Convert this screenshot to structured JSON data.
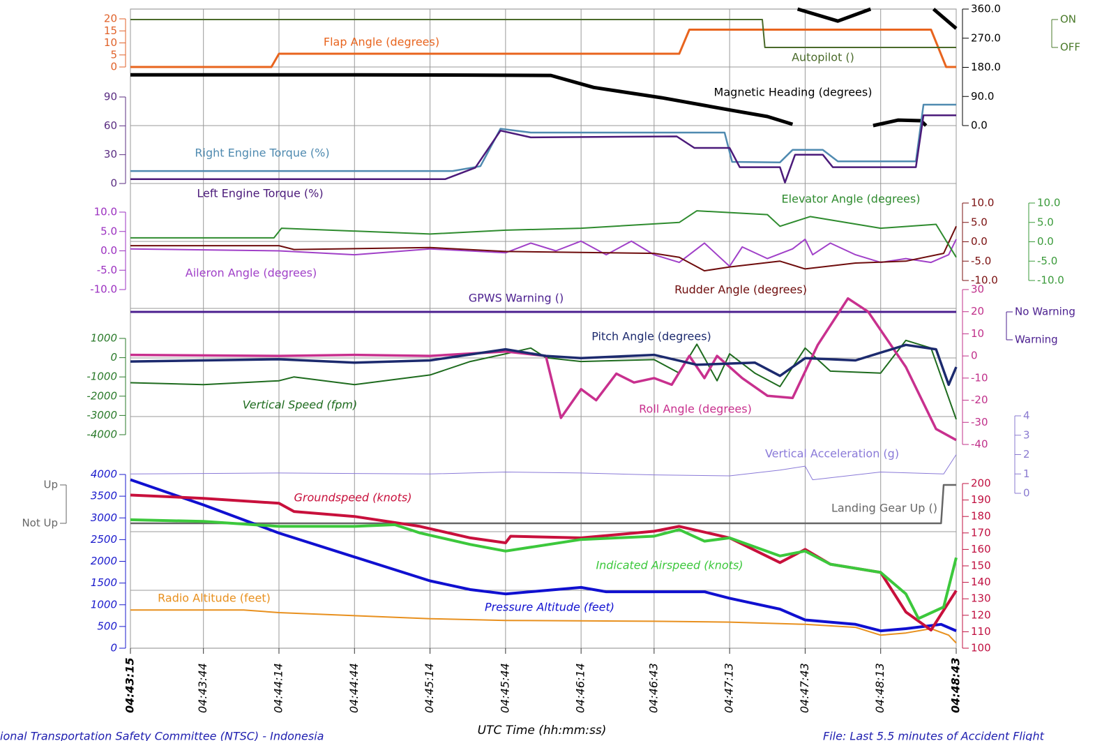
{
  "x_axis": {
    "label": "UTC Time (hh:mm:ss)",
    "xlim": [
      "04:43:15",
      "04:48:43"
    ],
    "xticks": [
      "04:43:15",
      "04:43:44",
      "04:44:14",
      "04:44:44",
      "04:45:14",
      "04:45:44",
      "04:46:14",
      "04:46:43",
      "04:47:13",
      "04:47:43",
      "04:48:13",
      "04:48:43"
    ],
    "grid": true
  },
  "footer": {
    "left": "ional Transportation Safety Committee (NTSC) - Indonesia",
    "right": "File: Last 5.5 minutes of Accident Flight"
  },
  "chart_data": [
    {
      "type": "line",
      "color": "#e0622a",
      "ylim": [
        0,
        20
      ],
      "yticks": [
        0,
        5,
        10,
        15,
        20
      ],
      "series": [
        {
          "name": "Flap Angle (degrees)",
          "color": "#e8641e",
          "x": [
            "04:43:15",
            "04:44:11",
            "04:44:14",
            "04:46:53",
            "04:46:57",
            "04:48:33",
            "04:48:39",
            "04:48:43"
          ],
          "values": [
            0,
            0,
            5.5,
            5.5,
            15.5,
            15.5,
            0,
            0
          ]
        }
      ]
    },
    {
      "type": "line",
      "color": "#4a7a2a",
      "ylim": [
        0,
        1
      ],
      "yticks": [
        {
          "value": 1,
          "label": "ON"
        },
        {
          "value": 0,
          "label": "OFF"
        }
      ],
      "series": [
        {
          "name": "Autopilot ()",
          "color": "#4a6a2a",
          "x": [
            "04:43:15",
            "04:47:26",
            "04:47:27",
            "04:48:43"
          ],
          "values": [
            1,
            1,
            0,
            0
          ]
        }
      ]
    },
    {
      "type": "line",
      "color": "#000000",
      "ylim": [
        0,
        360
      ],
      "yticks": [
        {
          "value": 0,
          "label": "0.0"
        },
        {
          "value": 90,
          "label": "90.0"
        },
        {
          "value": 180,
          "label": "180.0"
        },
        {
          "value": 270,
          "label": "270.0"
        },
        {
          "value": 360,
          "label": "360.0"
        }
      ],
      "series": [
        {
          "name": "Magnetic Heading (degrees)",
          "color": "#000000",
          "x": [
            "04:43:15",
            "04:44:30",
            "04:45:30",
            "04:46:02",
            "04:46:19",
            "04:46:46",
            "04:47:14",
            "04:47:28",
            "04:47:38",
            "04:47:39",
            "04:47:40",
            "04:47:56",
            "04:48:09",
            "04:48:09",
            "04:48:10",
            "04:48:20",
            "04:48:29",
            "04:48:31",
            "04:48:32",
            "04:48:34",
            "04:48:43"
          ],
          "values": [
            157,
            157,
            156,
            155,
            118,
            86,
            47,
            28,
            4,
            null,
            360,
            323,
            360,
            null,
            0,
            17,
            15,
            0,
            null,
            360,
            300
          ]
        }
      ]
    },
    {
      "type": "line",
      "color": "#5a2d82",
      "ylim": [
        0,
        90
      ],
      "yticks": [
        0,
        30,
        60,
        90
      ],
      "series": [
        {
          "name": "Right Engine Torque (%)",
          "color": "#4f8ab0",
          "x": [
            "04:43:15",
            "04:45:23",
            "04:45:34",
            "04:45:42",
            "04:45:54",
            "04:47:11",
            "04:47:14",
            "04:47:33",
            "04:47:38",
            "04:47:50",
            "04:47:56",
            "04:48:27",
            "04:48:30",
            "04:48:43"
          ],
          "values": [
            13,
            13,
            18,
            57,
            53,
            53,
            22.5,
            22,
            35,
            35,
            23,
            23,
            82,
            82
          ]
        },
        {
          "name": "Left Engine Torque (%)",
          "color": "#4b1a7a",
          "x": [
            "04:43:15",
            "04:45:20",
            "04:45:32",
            "04:45:42",
            "04:45:54",
            "04:46:52",
            "04:46:59",
            "04:47:13",
            "04:47:17",
            "04:47:33",
            "04:47:35",
            "04:47:39",
            "04:47:50",
            "04:47:54",
            "04:48:27",
            "04:48:30",
            "04:48:43"
          ],
          "values": [
            4.5,
            4.5,
            16.5,
            55,
            48,
            49,
            37,
            37,
            17,
            17,
            1,
            30,
            30,
            17,
            17,
            71,
            71
          ]
        }
      ]
    },
    {
      "type": "line",
      "color": "#9b30c0",
      "ylim": [
        -10,
        10
      ],
      "yticks": [
        {
          "value": -10,
          "label": "-10.0"
        },
        {
          "value": -5,
          "label": "-5.0"
        },
        {
          "value": 0,
          "label": "0.0"
        },
        {
          "value": 5,
          "label": "5.0"
        },
        {
          "value": 10,
          "label": "10.0"
        }
      ],
      "series": [
        {
          "name": "Aileron Angle (degrees)",
          "color": "#a040c8",
          "x": [
            "04:43:15",
            "04:44:14",
            "04:44:44",
            "04:45:14",
            "04:45:44",
            "04:45:54",
            "04:46:04",
            "04:46:14",
            "04:46:24",
            "04:46:34",
            "04:46:43",
            "04:46:53",
            "04:47:03",
            "04:47:13",
            "04:47:18",
            "04:47:28",
            "04:47:38",
            "04:47:43",
            "04:47:46",
            "04:47:53",
            "04:48:03",
            "04:48:13",
            "04:48:23",
            "04:48:33",
            "04:48:40",
            "04:48:43"
          ],
          "values": [
            0.5,
            0,
            -1,
            0.5,
            -0.5,
            2,
            0,
            2.5,
            -1,
            2.5,
            -1,
            -3,
            2,
            -4,
            1,
            -2,
            0.5,
            3,
            -1,
            2,
            -1,
            -3,
            -2,
            -3,
            -1,
            3
          ]
        }
      ]
    },
    {
      "type": "line",
      "color": "#7a1010",
      "ylim": [
        -10,
        10
      ],
      "yticks": [
        {
          "value": -10,
          "label": "-10.0"
        },
        {
          "value": -5,
          "label": "-5.0"
        },
        {
          "value": 0,
          "label": "0.0"
        },
        {
          "value": 5,
          "label": "5.0"
        },
        {
          "value": 10,
          "label": "10.0"
        }
      ],
      "series": [
        {
          "name": "Rudder Angle (degrees)",
          "color": "#6e0c0c",
          "x": [
            "04:43:15",
            "04:44:14",
            "04:44:20",
            "04:45:14",
            "04:45:44",
            "04:46:43",
            "04:46:53",
            "04:47:03",
            "04:47:13",
            "04:47:33",
            "04:47:43",
            "04:48:03",
            "04:48:23",
            "04:48:38",
            "04:48:43"
          ],
          "values": [
            -1,
            -1,
            -2,
            -1.5,
            -2.5,
            -3,
            -4,
            -7.5,
            -6.5,
            -5,
            -7,
            -5.5,
            -5,
            -3,
            4
          ]
        }
      ]
    },
    {
      "type": "line",
      "color": "#3a9a3a",
      "ylim": [
        -10,
        10
      ],
      "yticks": [
        {
          "value": -10,
          "label": "-10.0"
        },
        {
          "value": -5,
          "label": "-5.0"
        },
        {
          "value": 0,
          "label": "0.0"
        },
        {
          "value": 5,
          "label": "5.0"
        },
        {
          "value": 10,
          "label": "10.0"
        }
      ],
      "series": [
        {
          "name": "Elevator Angle (degrees)",
          "color": "#2e8b2e",
          "x": [
            "04:43:15",
            "04:44:12",
            "04:44:15",
            "04:45:14",
            "04:45:44",
            "04:46:14",
            "04:46:53",
            "04:47:00",
            "04:47:28",
            "04:47:33",
            "04:47:45",
            "04:48:13",
            "04:48:35",
            "04:48:43"
          ],
          "values": [
            1,
            1,
            3.5,
            2,
            3,
            3.5,
            5,
            8,
            7,
            4,
            6.5,
            3.5,
            4.5,
            -4
          ]
        }
      ]
    },
    {
      "type": "line",
      "color": "#4b1f8f",
      "ylim": [
        0,
        1
      ],
      "yticks": [
        {
          "value": 1,
          "label": "No Warning"
        },
        {
          "value": 0,
          "label": "Warning"
        }
      ],
      "series": [
        {
          "name": "GPWS Warning ()",
          "color": "#4b1f8f",
          "x": [
            "04:43:15",
            "04:48:43"
          ],
          "values": [
            1,
            1
          ]
        }
      ]
    },
    {
      "type": "line",
      "color": "#2a7a2a",
      "ylim": [
        -4000,
        1000
      ],
      "yticks": [
        -4000,
        -3000,
        -2000,
        -1000,
        0,
        1000
      ],
      "series": [
        {
          "name": "Vertical Speed (fpm)",
          "color": "#1e6b1e",
          "x": [
            "04:43:15",
            "04:43:44",
            "04:44:14",
            "04:44:20",
            "04:44:44",
            "04:45:14",
            "04:45:30",
            "04:45:44",
            "04:45:54",
            "04:46:00",
            "04:46:14",
            "04:46:43",
            "04:46:53",
            "04:47:00",
            "04:47:08",
            "04:47:13",
            "04:47:23",
            "04:47:33",
            "04:47:43",
            "04:47:53",
            "04:48:13",
            "04:48:23",
            "04:48:33",
            "04:48:43"
          ],
          "values": [
            -1300,
            -1400,
            -1200,
            -1000,
            -1400,
            -900,
            -200,
            200,
            500,
            0,
            -200,
            -100,
            -800,
            700,
            -1200,
            200,
            -800,
            -1500,
            500,
            -700,
            -800,
            900,
            500,
            -3200
          ]
        }
      ]
    },
    {
      "type": "line",
      "color": "#c0308a",
      "ylim": [
        -40,
        30
      ],
      "yticks": [
        -40,
        -30,
        -20,
        -10,
        0,
        10,
        20,
        30
      ],
      "series": [
        {
          "name": "Roll Angle (degrees)",
          "color": "#c8308e",
          "x": [
            "04:43:15",
            "04:44:14",
            "04:44:44",
            "04:45:14",
            "04:45:44",
            "04:46:00",
            "04:46:06",
            "04:46:14",
            "04:46:20",
            "04:46:28",
            "04:46:35",
            "04:46:43",
            "04:46:50",
            "04:46:57",
            "04:47:03",
            "04:47:08",
            "04:47:18",
            "04:47:28",
            "04:47:38",
            "04:47:48",
            "04:48:00",
            "04:48:08",
            "04:48:23",
            "04:48:35",
            "04:48:43"
          ],
          "values": [
            0.5,
            0,
            0.5,
            0,
            2,
            0,
            -28,
            -15,
            -20,
            -8,
            -12,
            -10,
            -13,
            0,
            -10,
            0,
            -10,
            -18,
            -19,
            5,
            26,
            20,
            -5,
            -33,
            -38
          ]
        },
        {
          "name": "Pitch Angle (degrees)",
          "color": "#1c2a6e",
          "x": [
            "04:43:15",
            "04:44:14",
            "04:44:44",
            "04:45:14",
            "04:45:44",
            "04:46:00",
            "04:46:14",
            "04:46:43",
            "04:47:00",
            "04:47:23",
            "04:47:33",
            "04:47:43",
            "04:48:03",
            "04:48:23",
            "04:48:35",
            "04:48:40",
            "04:48:43"
          ],
          "values": [
            -2.5,
            -1.5,
            -3,
            -2,
            3,
            0,
            -1,
            0.5,
            -4,
            -3,
            -9,
            -1,
            -2,
            5,
            3,
            -13,
            -5
          ]
        }
      ]
    },
    {
      "type": "line",
      "color": "#8a7ad0",
      "ylim": [
        0,
        4
      ],
      "yticks": [
        0,
        1,
        2,
        3,
        4
      ],
      "series": [
        {
          "name": "Vertical Acceleration (g)",
          "color": "#8a7ad8",
          "x": [
            "04:43:15",
            "04:44:14",
            "04:45:14",
            "04:45:44",
            "04:46:14",
            "04:46:43",
            "04:47:13",
            "04:47:33",
            "04:47:43",
            "04:47:46",
            "04:48:13",
            "04:48:38",
            "04:48:43"
          ],
          "values": [
            1,
            1.05,
            1,
            1.1,
            1.05,
            0.95,
            0.9,
            1.2,
            1.4,
            0.7,
            1.1,
            1,
            2
          ]
        }
      ]
    },
    {
      "type": "line",
      "color": "#666666",
      "ylim": [
        0,
        1
      ],
      "yticks": [
        {
          "value": 1,
          "label": "Up"
        },
        {
          "value": 0,
          "label": "Not Up"
        }
      ],
      "series": [
        {
          "name": "Landing Gear Up ()",
          "color": "#666666",
          "x": [
            "04:43:15",
            "04:48:37",
            "04:48:38",
            "04:48:43"
          ],
          "values": [
            0,
            0,
            1,
            1
          ]
        }
      ]
    },
    {
      "type": "line",
      "color": "#1a1acc",
      "ylim": [
        0,
        4000
      ],
      "yticks": [
        0,
        500,
        1000,
        1500,
        2000,
        2500,
        3000,
        3500,
        4000
      ],
      "series": [
        {
          "name": "Pressure Altitude (feet)",
          "color": "#1010d0",
          "x": [
            "04:43:15",
            "04:43:44",
            "04:44:14",
            "04:44:44",
            "04:45:14",
            "04:45:30",
            "04:45:44",
            "04:46:14",
            "04:46:24",
            "04:47:03",
            "04:47:13",
            "04:47:33",
            "04:47:43",
            "04:48:03",
            "04:48:13",
            "04:48:23",
            "04:48:37",
            "04:48:43"
          ],
          "values": [
            3880,
            3300,
            2650,
            2100,
            1550,
            1350,
            1250,
            1400,
            1300,
            1300,
            1150,
            900,
            650,
            550,
            400,
            450,
            550,
            400
          ]
        },
        {
          "name": "Radio Altitude (feet)",
          "color": "#e8901e",
          "x": [
            "04:43:15",
            "04:44:00",
            "04:44:14",
            "04:45:14",
            "04:45:44",
            "04:46:43",
            "04:47:13",
            "04:47:43",
            "04:48:03",
            "04:48:13",
            "04:48:23",
            "04:48:33",
            "04:48:40",
            "04:48:43"
          ],
          "values": [
            880,
            880,
            820,
            680,
            640,
            620,
            600,
            550,
            480,
            300,
            350,
            450,
            300,
            120
          ]
        }
      ]
    },
    {
      "type": "line",
      "color": "#c01040",
      "ylim": [
        100,
        200
      ],
      "yticks": [
        100,
        110,
        120,
        130,
        140,
        150,
        160,
        170,
        180,
        190,
        200
      ],
      "series": [
        {
          "name": "Groundspeed (knots)",
          "color": "#c8103c",
          "x": [
            "04:43:15",
            "04:43:44",
            "04:44:14",
            "04:44:20",
            "04:44:44",
            "04:45:10",
            "04:45:30",
            "04:45:44",
            "04:45:46",
            "04:46:14",
            "04:46:43",
            "04:46:53",
            "04:47:13",
            "04:47:33",
            "04:47:43",
            "04:47:53",
            "04:48:13",
            "04:48:23",
            "04:48:33",
            "04:48:43"
          ],
          "values": [
            193,
            191,
            188,
            183,
            180,
            174,
            167,
            164,
            168,
            167,
            171,
            174,
            167,
            152,
            160,
            151,
            146,
            122,
            111,
            135
          ]
        },
        {
          "name": "Indicated Airspeed (knots)",
          "color": "#3cc83c",
          "x": [
            "04:43:15",
            "04:43:44",
            "04:44:14",
            "04:44:44",
            "04:45:00",
            "04:45:10",
            "04:45:30",
            "04:45:44",
            "04:46:14",
            "04:46:43",
            "04:46:53",
            "04:47:03",
            "04:47:13",
            "04:47:33",
            "04:47:43",
            "04:47:53",
            "04:48:13",
            "04:48:23",
            "04:48:28",
            "04:48:38",
            "04:48:43"
          ],
          "values": [
            178,
            177,
            174,
            174,
            175,
            170,
            163,
            159,
            166,
            168,
            172,
            165,
            167,
            156,
            159,
            151,
            146,
            133,
            118,
            125,
            155
          ]
        }
      ]
    }
  ]
}
